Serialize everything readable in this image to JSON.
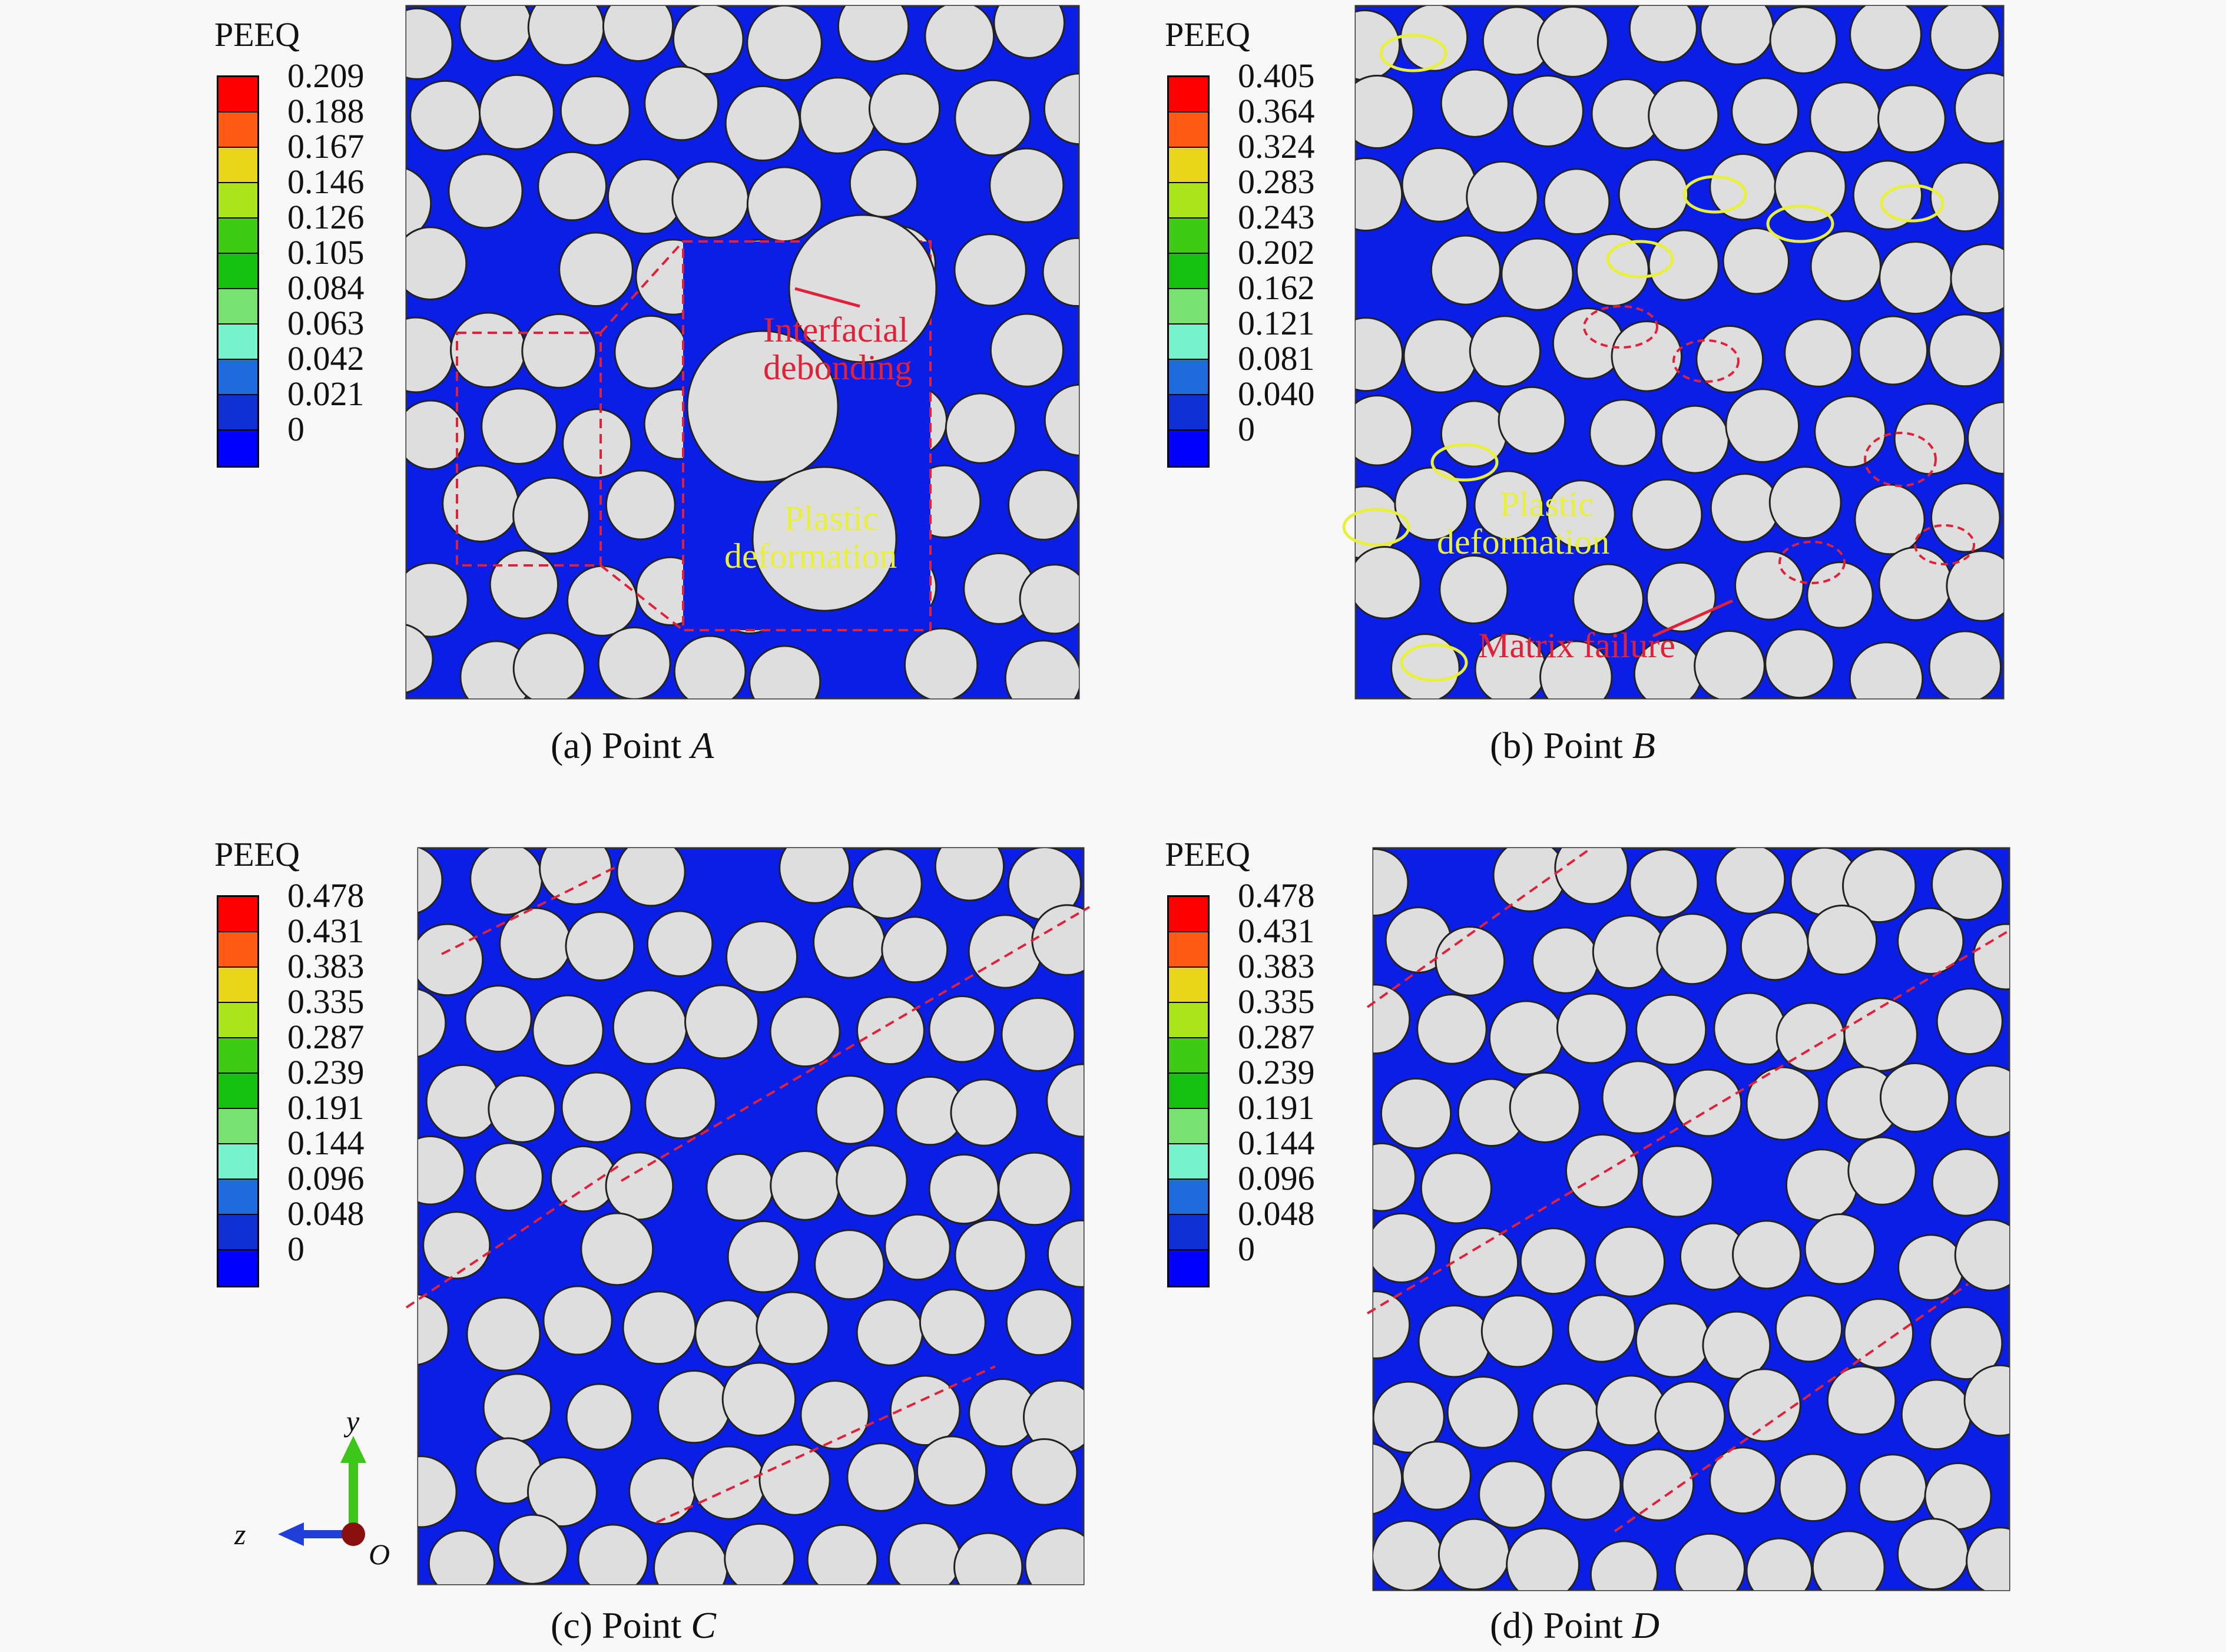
{
  "legend_title": "PEEQ",
  "legend_colors": [
    "#ff0000",
    "#ff5a14",
    "#e8d61a",
    "#a9e51a",
    "#3ecb14",
    "#15c00e",
    "#78e16f",
    "#76f2cc",
    "#1d6bdc",
    "#1030d4",
    "#0000ff"
  ],
  "panels": [
    {
      "id": "a",
      "caption_prefix": "(a) Point",
      "caption_point": "A",
      "legend_values": [
        "0.209",
        "0.188",
        "0.167",
        "0.146",
        "0.126",
        "0.105",
        "0.084",
        "0.063",
        "0.042",
        "0.021",
        "0"
      ],
      "notes": {
        "interfacial_line1": "Interfacial",
        "interfacial_line2": "debonding",
        "plastic_line1": "Plastic",
        "plastic_line2": "deformation"
      }
    },
    {
      "id": "b",
      "caption_prefix": "(b) Point",
      "caption_point": "B",
      "legend_values": [
        "0.405",
        "0.364",
        "0.324",
        "0.283",
        "0.243",
        "0.202",
        "0.162",
        "0.121",
        "0.081",
        "0.040",
        "0"
      ],
      "notes": {
        "plastic_line1": "Plastic",
        "plastic_line2": "deformation",
        "matrix_failure": "Matrix failure"
      }
    },
    {
      "id": "c",
      "caption_prefix": "(c) Point",
      "caption_point": "C",
      "legend_values": [
        "0.478",
        "0.431",
        "0.383",
        "0.335",
        "0.287",
        "0.239",
        "0.191",
        "0.144",
        "0.096",
        "0.048",
        "0"
      ]
    },
    {
      "id": "d",
      "caption_prefix": "(d) Point",
      "caption_point": "D",
      "legend_values": [
        "0.478",
        "0.431",
        "0.383",
        "0.335",
        "0.287",
        "0.239",
        "0.191",
        "0.144",
        "0.096",
        "0.048",
        "0"
      ]
    }
  ],
  "axes": {
    "y_label": "y",
    "z_label": "z",
    "origin_label": "O",
    "colors": {
      "y_arrow": "#3dc61a",
      "z_arrow": "#1f3fd8",
      "origin": "#8a1010"
    }
  },
  "colors": {
    "matrix": "#0a1ee6",
    "fiber": "#dedede",
    "fiber_edge": "#222222",
    "annotation_red": "#e0213a",
    "annotation_yellow": "#e8f03a"
  }
}
